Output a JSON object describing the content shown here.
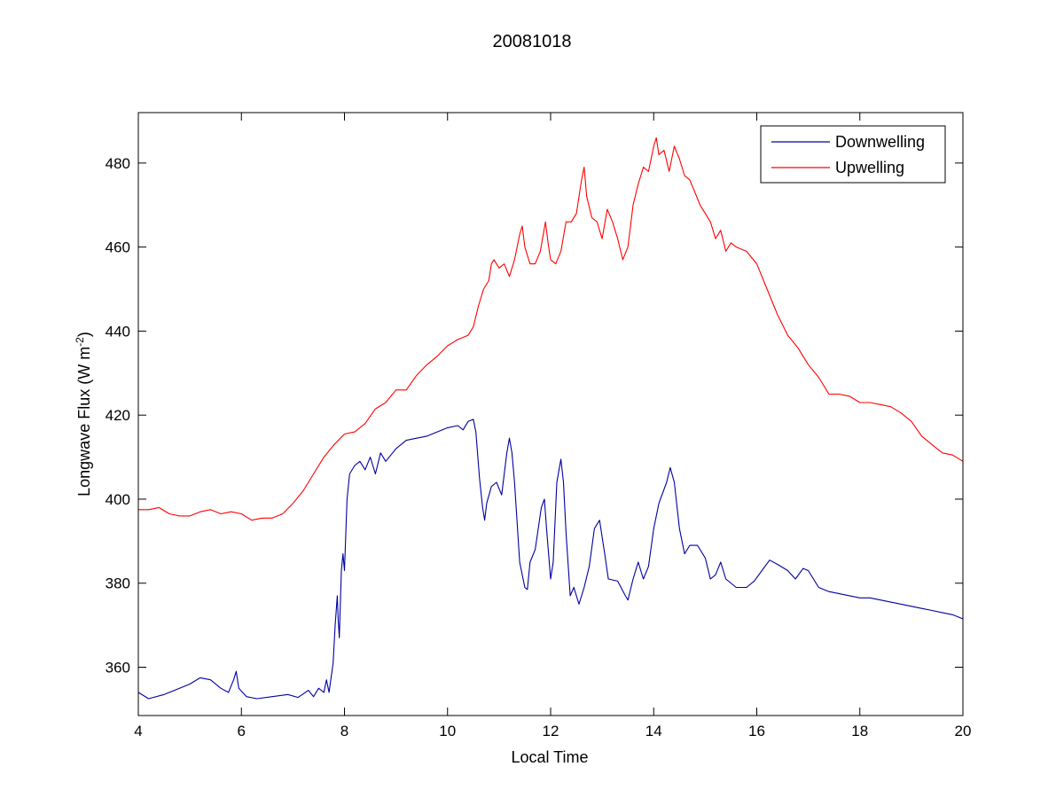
{
  "chart_data": {
    "type": "line",
    "title": "20081018",
    "xlabel": "Local Time",
    "ylabel": "Longwave Flux (W m",
    "ylabel_sup": "-2",
    "ylabel_close": ")",
    "xlim": [
      4,
      20
    ],
    "ylim": [
      348.5,
      492
    ],
    "xticks": [
      4,
      6,
      8,
      10,
      12,
      14,
      16,
      18,
      20
    ],
    "yticks": [
      360,
      380,
      400,
      420,
      440,
      460,
      480
    ],
    "grid": false,
    "legend_position": "top-right",
    "series": [
      {
        "name": "Downwelling",
        "color": "#0000a0",
        "points": [
          [
            4.0,
            354
          ],
          [
            4.2,
            352.5
          ],
          [
            4.5,
            353.5
          ],
          [
            4.8,
            355
          ],
          [
            5.0,
            356
          ],
          [
            5.2,
            357.5
          ],
          [
            5.4,
            357
          ],
          [
            5.6,
            355
          ],
          [
            5.75,
            354
          ],
          [
            5.85,
            357
          ],
          [
            5.9,
            359
          ],
          [
            5.95,
            355
          ],
          [
            6.1,
            353
          ],
          [
            6.3,
            352.5
          ],
          [
            6.6,
            353
          ],
          [
            6.9,
            353.5
          ],
          [
            7.1,
            352.8
          ],
          [
            7.3,
            354.5
          ],
          [
            7.4,
            353
          ],
          [
            7.5,
            355
          ],
          [
            7.6,
            354
          ],
          [
            7.65,
            357
          ],
          [
            7.7,
            354
          ],
          [
            7.78,
            361
          ],
          [
            7.82,
            370
          ],
          [
            7.86,
            377
          ],
          [
            7.88,
            371
          ],
          [
            7.9,
            367
          ],
          [
            7.94,
            383
          ],
          [
            7.97,
            387
          ],
          [
            8.0,
            383
          ],
          [
            8.05,
            400
          ],
          [
            8.1,
            406
          ],
          [
            8.2,
            408
          ],
          [
            8.3,
            409
          ],
          [
            8.4,
            407
          ],
          [
            8.5,
            410
          ],
          [
            8.6,
            406
          ],
          [
            8.7,
            411
          ],
          [
            8.8,
            409
          ],
          [
            9.0,
            412
          ],
          [
            9.2,
            414
          ],
          [
            9.4,
            414.5
          ],
          [
            9.6,
            415
          ],
          [
            9.8,
            416
          ],
          [
            10.0,
            417
          ],
          [
            10.2,
            417.5
          ],
          [
            10.3,
            416.5
          ],
          [
            10.4,
            418.5
          ],
          [
            10.5,
            419
          ],
          [
            10.55,
            416
          ],
          [
            10.62,
            405
          ],
          [
            10.68,
            398
          ],
          [
            10.72,
            395
          ],
          [
            10.76,
            399
          ],
          [
            10.85,
            403
          ],
          [
            10.95,
            404
          ],
          [
            11.05,
            401
          ],
          [
            11.15,
            411
          ],
          [
            11.2,
            414.5
          ],
          [
            11.25,
            411
          ],
          [
            11.3,
            404
          ],
          [
            11.4,
            385
          ],
          [
            11.5,
            379
          ],
          [
            11.55,
            378.5
          ],
          [
            11.6,
            385
          ],
          [
            11.7,
            388
          ],
          [
            11.82,
            398
          ],
          [
            11.88,
            400
          ],
          [
            11.92,
            393
          ],
          [
            12.0,
            381
          ],
          [
            12.05,
            385
          ],
          [
            12.12,
            404
          ],
          [
            12.2,
            409.5
          ],
          [
            12.25,
            404
          ],
          [
            12.3,
            392
          ],
          [
            12.38,
            377
          ],
          [
            12.45,
            379
          ],
          [
            12.55,
            375
          ],
          [
            12.65,
            379
          ],
          [
            12.75,
            384
          ],
          [
            12.85,
            393
          ],
          [
            12.95,
            395
          ],
          [
            13.05,
            387
          ],
          [
            13.12,
            381
          ],
          [
            13.3,
            380.5
          ],
          [
            13.45,
            377
          ],
          [
            13.5,
            376
          ],
          [
            13.6,
            381
          ],
          [
            13.7,
            385
          ],
          [
            13.8,
            381
          ],
          [
            13.9,
            384
          ],
          [
            14.0,
            393
          ],
          [
            14.1,
            399
          ],
          [
            14.25,
            404
          ],
          [
            14.32,
            407.5
          ],
          [
            14.4,
            404
          ],
          [
            14.5,
            393
          ],
          [
            14.6,
            387
          ],
          [
            14.7,
            389
          ],
          [
            14.85,
            389
          ],
          [
            15.0,
            386
          ],
          [
            15.1,
            381
          ],
          [
            15.2,
            382
          ],
          [
            15.3,
            385
          ],
          [
            15.4,
            381
          ],
          [
            15.6,
            379
          ],
          [
            15.8,
            379
          ],
          [
            15.95,
            380.5
          ],
          [
            16.1,
            383
          ],
          [
            16.25,
            385.5
          ],
          [
            16.4,
            384.5
          ],
          [
            16.6,
            383
          ],
          [
            16.75,
            381
          ],
          [
            16.9,
            383.5
          ],
          [
            17.0,
            383
          ],
          [
            17.2,
            379
          ],
          [
            17.4,
            378
          ],
          [
            17.6,
            377.5
          ],
          [
            17.8,
            377
          ],
          [
            18.0,
            376.5
          ],
          [
            18.2,
            376.5
          ],
          [
            18.4,
            376
          ],
          [
            18.6,
            375.5
          ],
          [
            18.8,
            375
          ],
          [
            19.0,
            374.5
          ],
          [
            19.2,
            374
          ],
          [
            19.4,
            373.5
          ],
          [
            19.6,
            373
          ],
          [
            19.8,
            372.5
          ],
          [
            20.0,
            371.5
          ]
        ]
      },
      {
        "name": "Upwelling",
        "color": "#ff0000",
        "points": [
          [
            4.0,
            397.5
          ],
          [
            4.2,
            397.5
          ],
          [
            4.4,
            398
          ],
          [
            4.6,
            396.5
          ],
          [
            4.8,
            396
          ],
          [
            5.0,
            396
          ],
          [
            5.2,
            397
          ],
          [
            5.4,
            397.5
          ],
          [
            5.6,
            396.5
          ],
          [
            5.8,
            397
          ],
          [
            6.0,
            396.5
          ],
          [
            6.2,
            395
          ],
          [
            6.4,
            395.5
          ],
          [
            6.6,
            395.5
          ],
          [
            6.8,
            396.5
          ],
          [
            7.0,
            399
          ],
          [
            7.2,
            402
          ],
          [
            7.4,
            406
          ],
          [
            7.6,
            410
          ],
          [
            7.8,
            413
          ],
          [
            8.0,
            415.5
          ],
          [
            8.2,
            416
          ],
          [
            8.4,
            418
          ],
          [
            8.6,
            421.5
          ],
          [
            8.8,
            423
          ],
          [
            9.0,
            426
          ],
          [
            9.2,
            426
          ],
          [
            9.4,
            429.5
          ],
          [
            9.6,
            432
          ],
          [
            9.8,
            434
          ],
          [
            10.0,
            436.5
          ],
          [
            10.2,
            438
          ],
          [
            10.4,
            439
          ],
          [
            10.5,
            441
          ],
          [
            10.6,
            446
          ],
          [
            10.7,
            450
          ],
          [
            10.8,
            452
          ],
          [
            10.85,
            456
          ],
          [
            10.9,
            457
          ],
          [
            11.0,
            455
          ],
          [
            11.1,
            456
          ],
          [
            11.2,
            453
          ],
          [
            11.3,
            457
          ],
          [
            11.4,
            463
          ],
          [
            11.45,
            465
          ],
          [
            11.5,
            460
          ],
          [
            11.6,
            456
          ],
          [
            11.7,
            456
          ],
          [
            11.8,
            459
          ],
          [
            11.9,
            466
          ],
          [
            11.95,
            461
          ],
          [
            12.0,
            457
          ],
          [
            12.1,
            456
          ],
          [
            12.2,
            459
          ],
          [
            12.3,
            466
          ],
          [
            12.4,
            466
          ],
          [
            12.5,
            468
          ],
          [
            12.6,
            476
          ],
          [
            12.65,
            479
          ],
          [
            12.7,
            472
          ],
          [
            12.8,
            467
          ],
          [
            12.9,
            466
          ],
          [
            13.0,
            462
          ],
          [
            13.1,
            469
          ],
          [
            13.2,
            466
          ],
          [
            13.3,
            462
          ],
          [
            13.4,
            457
          ],
          [
            13.5,
            460
          ],
          [
            13.6,
            470
          ],
          [
            13.7,
            475
          ],
          [
            13.8,
            479
          ],
          [
            13.9,
            478
          ],
          [
            14.0,
            484
          ],
          [
            14.05,
            486
          ],
          [
            14.1,
            482
          ],
          [
            14.2,
            483
          ],
          [
            14.3,
            478
          ],
          [
            14.4,
            484
          ],
          [
            14.5,
            481
          ],
          [
            14.6,
            477
          ],
          [
            14.7,
            476
          ],
          [
            14.8,
            473
          ],
          [
            14.9,
            470
          ],
          [
            15.0,
            468
          ],
          [
            15.1,
            466
          ],
          [
            15.2,
            462
          ],
          [
            15.3,
            464
          ],
          [
            15.4,
            459
          ],
          [
            15.5,
            461
          ],
          [
            15.6,
            460
          ],
          [
            15.8,
            459
          ],
          [
            16.0,
            456
          ],
          [
            16.2,
            450
          ],
          [
            16.4,
            444
          ],
          [
            16.6,
            439
          ],
          [
            16.8,
            436
          ],
          [
            17.0,
            432
          ],
          [
            17.2,
            429
          ],
          [
            17.4,
            425
          ],
          [
            17.6,
            425
          ],
          [
            17.8,
            424.5
          ],
          [
            18.0,
            423
          ],
          [
            18.2,
            423
          ],
          [
            18.4,
            422.5
          ],
          [
            18.6,
            422
          ],
          [
            18.8,
            420.5
          ],
          [
            19.0,
            418.5
          ],
          [
            19.2,
            415
          ],
          [
            19.4,
            413
          ],
          [
            19.6,
            411
          ],
          [
            19.8,
            410.5
          ],
          [
            20.0,
            409
          ]
        ]
      }
    ]
  }
}
